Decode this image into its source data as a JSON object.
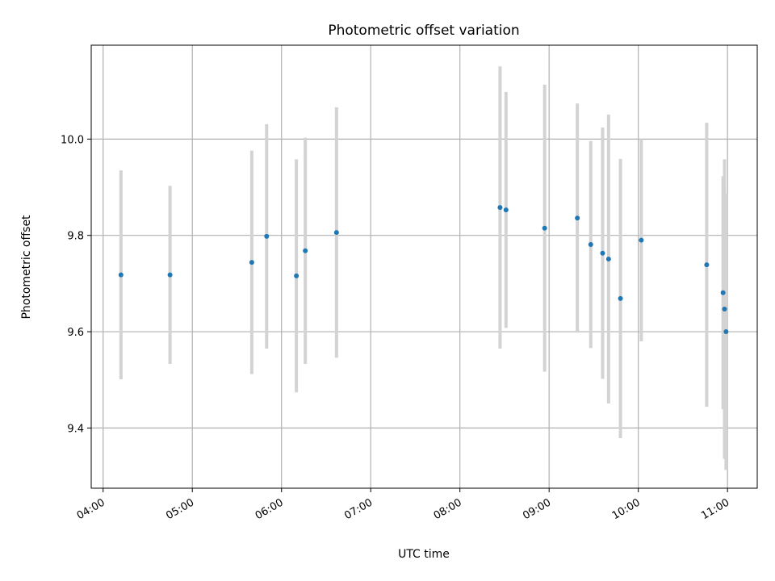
{
  "chart_data": {
    "type": "scatter",
    "title": "Photometric offset variation",
    "xlabel": "UTC time",
    "ylabel": "Photometric offset",
    "x_tick_labels": [
      "04:00",
      "05:00",
      "06:00",
      "07:00",
      "08:00",
      "09:00",
      "10:00",
      "11:00"
    ],
    "y_ticks": [
      9.4,
      9.6,
      9.8,
      10.0
    ],
    "y_tick_labels": [
      "9.4",
      "9.6",
      "9.8",
      "10.0"
    ],
    "xlim": [
      "03:52",
      "11:20"
    ],
    "ylim": [
      9.275,
      10.195
    ],
    "grid": true,
    "colors": {
      "point": "#1f77b4",
      "errorbar": "#d3d3d3",
      "grid": "#b0b0b0"
    },
    "points": [
      {
        "x": "04:12",
        "y": 9.718,
        "err": 0.217
      },
      {
        "x": "04:45",
        "y": 9.718,
        "err": 0.185
      },
      {
        "x": "05:40",
        "y": 9.744,
        "err": 0.232
      },
      {
        "x": "05:50",
        "y": 9.798,
        "err": 0.233
      },
      {
        "x": "06:10",
        "y": 9.716,
        "err": 0.242
      },
      {
        "x": "06:16",
        "y": 9.768,
        "err": 0.235
      },
      {
        "x": "06:37",
        "y": 9.806,
        "err": 0.26
      },
      {
        "x": "08:27",
        "y": 9.858,
        "err": 0.293
      },
      {
        "x": "08:31",
        "y": 9.853,
        "err": 0.245
      },
      {
        "x": "08:57",
        "y": 9.815,
        "err": 0.298
      },
      {
        "x": "09:19",
        "y": 9.836,
        "err": 0.238
      },
      {
        "x": "09:28",
        "y": 9.781,
        "err": 0.215
      },
      {
        "x": "09:36",
        "y": 9.763,
        "err": 0.261
      },
      {
        "x": "09:40",
        "y": 9.751,
        "err": 0.3
      },
      {
        "x": "09:48",
        "y": 9.669,
        "err": 0.29
      },
      {
        "x": "10:02",
        "y": 9.79,
        "err": 0.21
      },
      {
        "x": "10:46",
        "y": 9.739,
        "err": 0.295
      },
      {
        "x": "10:57",
        "y": 9.681,
        "err": 0.242
      },
      {
        "x": "10:58",
        "y": 9.647,
        "err": 0.311
      },
      {
        "x": "10:59",
        "y": 9.6,
        "err": 0.287
      }
    ]
  }
}
